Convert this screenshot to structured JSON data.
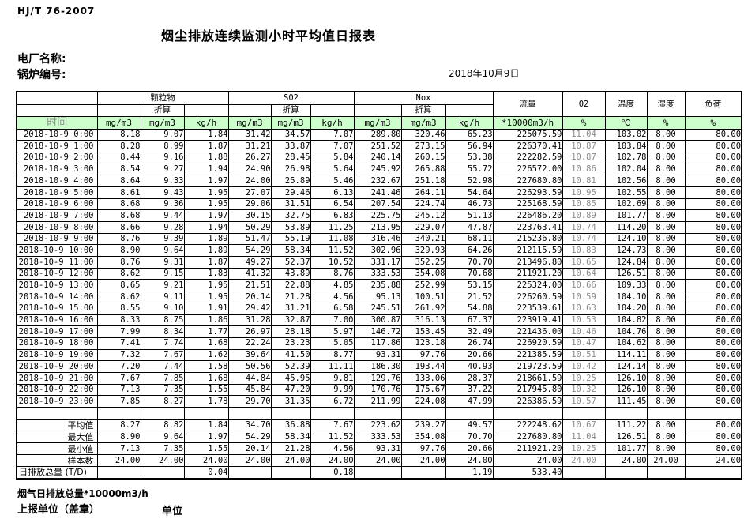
{
  "doc": {
    "standard": "HJ/T  76-2007",
    "title": "烟尘排放连续监测小时平均值日报表",
    "plant_label": "电厂名称:",
    "boiler_label": "锅炉编号:",
    "date": "2018年10月9日"
  },
  "table": {
    "time_header": "时间",
    "subheader": "折算",
    "groups": {
      "pm": "颗粒物",
      "so2": "S02",
      "nox": "Nox",
      "flow": "流量",
      "o2": "02",
      "temp": "温度",
      "humidity": "湿度",
      "load": "负荷"
    },
    "units": {
      "mgm3": "mg/m3",
      "kgh": "kg/h",
      "flow": "*10000m3/h",
      "percent": "%",
      "celsius": "℃"
    },
    "rows": [
      [
        "2018-10-9 0:00",
        "8.18",
        "9.07",
        "1.84",
        "31.42",
        "34.57",
        "7.07",
        "289.80",
        "320.46",
        "65.23",
        "225075.59",
        "11.04",
        "103.02",
        "8.00",
        "80.00"
      ],
      [
        "2018-10-9 1:00",
        "8.28",
        "8.99",
        "1.87",
        "31.21",
        "33.87",
        "7.07",
        "251.52",
        "273.15",
        "56.94",
        "226370.41",
        "10.87",
        "103.84",
        "8.00",
        "80.00"
      ],
      [
        "2018-10-9 2:00",
        "8.44",
        "9.16",
        "1.88",
        "26.27",
        "28.45",
        "5.84",
        "240.14",
        "260.15",
        "53.38",
        "222282.59",
        "10.87",
        "102.78",
        "8.00",
        "80.00"
      ],
      [
        "2018-10-9 3:00",
        "8.54",
        "9.27",
        "1.94",
        "24.90",
        "26.98",
        "5.64",
        "245.92",
        "265.88",
        "55.72",
        "226572.00",
        "10.86",
        "102.04",
        "8.00",
        "80.00"
      ],
      [
        "2018-10-9 4:00",
        "8.64",
        "9.33",
        "1.97",
        "24.00",
        "25.89",
        "5.46",
        "232.67",
        "251.18",
        "52.98",
        "227680.80",
        "10.81",
        "102.56",
        "8.00",
        "80.00"
      ],
      [
        "2018-10-9 5:00",
        "8.61",
        "9.43",
        "1.95",
        "27.07",
        "29.46",
        "6.13",
        "241.46",
        "264.11",
        "54.64",
        "226293.59",
        "10.95",
        "102.55",
        "8.00",
        "80.00"
      ],
      [
        "2018-10-9 6:00",
        "8.68",
        "9.36",
        "1.95",
        "29.06",
        "31.51",
        "6.54",
        "207.54",
        "224.74",
        "46.73",
        "225168.59",
        "10.85",
        "102.69",
        "8.00",
        "80.00"
      ],
      [
        "2018-10-9 7:00",
        "8.68",
        "9.44",
        "1.97",
        "30.15",
        "32.75",
        "6.83",
        "225.75",
        "245.12",
        "51.13",
        "226486.20",
        "10.89",
        "101.77",
        "8.00",
        "80.00"
      ],
      [
        "2018-10-9 8:00",
        "8.66",
        "9.28",
        "1.94",
        "50.29",
        "53.89",
        "11.25",
        "213.95",
        "229.07",
        "47.87",
        "223763.41",
        "10.74",
        "114.20",
        "8.00",
        "80.00"
      ],
      [
        "2018-10-9 9:00",
        "8.76",
        "9.39",
        "1.89",
        "51.47",
        "55.19",
        "11.08",
        "316.46",
        "340.21",
        "68.11",
        "215236.80",
        "10.74",
        "124.10",
        "8.00",
        "80.00"
      ],
      [
        "2018-10-9 10:00",
        "8.90",
        "9.64",
        "1.89",
        "54.29",
        "58.34",
        "11.52",
        "302.96",
        "329.93",
        "64.26",
        "212115.59",
        "10.83",
        "124.73",
        "8.00",
        "80.00"
      ],
      [
        "2018-10-9 11:00",
        "8.76",
        "9.31",
        "1.87",
        "49.27",
        "52.37",
        "10.52",
        "331.17",
        "352.25",
        "70.70",
        "213496.80",
        "10.65",
        "124.84",
        "8.00",
        "80.00"
      ],
      [
        "2018-10-9 12:00",
        "8.62",
        "9.15",
        "1.83",
        "41.32",
        "43.89",
        "8.76",
        "333.53",
        "354.08",
        "70.68",
        "211921.20",
        "10.64",
        "126.51",
        "8.00",
        "80.00"
      ],
      [
        "2018-10-9 13:00",
        "8.65",
        "9.21",
        "1.95",
        "21.51",
        "22.88",
        "4.85",
        "235.88",
        "252.99",
        "53.15",
        "225324.00",
        "10.66",
        "109.33",
        "8.00",
        "80.00"
      ],
      [
        "2018-10-9 14:00",
        "8.62",
        "9.11",
        "1.95",
        "20.14",
        "21.28",
        "4.56",
        "95.13",
        "100.51",
        "21.52",
        "226260.59",
        "10.59",
        "104.10",
        "8.00",
        "80.00"
      ],
      [
        "2018-10-9 15:00",
        "8.55",
        "9.10",
        "1.91",
        "29.42",
        "31.21",
        "6.58",
        "245.51",
        "261.92",
        "54.88",
        "223539.61",
        "10.63",
        "104.20",
        "8.00",
        "80.00"
      ],
      [
        "2018-10-9 16:00",
        "8.33",
        "8.75",
        "1.86",
        "31.28",
        "32.87",
        "7.00",
        "300.87",
        "316.13",
        "67.37",
        "223919.41",
        "10.53",
        "104.82",
        "8.00",
        "80.00"
      ],
      [
        "2018-10-9 17:00",
        "7.99",
        "8.34",
        "1.77",
        "26.97",
        "28.18",
        "5.97",
        "146.72",
        "153.45",
        "32.49",
        "221436.00",
        "10.46",
        "104.76",
        "8.00",
        "80.00"
      ],
      [
        "2018-10-9 18:00",
        "7.41",
        "7.74",
        "1.68",
        "22.24",
        "23.23",
        "5.05",
        "117.86",
        "123.18",
        "26.74",
        "226920.59",
        "10.47",
        "104.62",
        "8.00",
        "80.00"
      ],
      [
        "2018-10-9 19:00",
        "7.32",
        "7.67",
        "1.62",
        "39.64",
        "41.50",
        "8.77",
        "93.31",
        "97.76",
        "20.66",
        "221385.59",
        "10.51",
        "114.11",
        "8.00",
        "80.00"
      ],
      [
        "2018-10-9 20:00",
        "7.20",
        "7.44",
        "1.58",
        "50.56",
        "52.39",
        "11.11",
        "186.30",
        "193.44",
        "40.93",
        "219723.59",
        "10.42",
        "124.14",
        "8.00",
        "80.00"
      ],
      [
        "2018-10-9 21:00",
        "7.67",
        "7.85",
        "1.68",
        "44.84",
        "45.95",
        "9.81",
        "129.76",
        "133.06",
        "28.37",
        "218661.59",
        "10.25",
        "126.10",
        "8.00",
        "80.00"
      ],
      [
        "2018-10-9 22:00",
        "7.13",
        "7.35",
        "1.55",
        "45.84",
        "47.20",
        "9.99",
        "170.76",
        "175.67",
        "37.22",
        "217945.80",
        "10.32",
        "126.10",
        "8.00",
        "80.00"
      ],
      [
        "2018-10-9 23:00",
        "7.85",
        "8.27",
        "1.78",
        "29.70",
        "31.35",
        "6.72",
        "211.99",
        "224.08",
        "47.99",
        "226386.59",
        "10.57",
        "111.45",
        "8.00",
        "80.00"
      ]
    ],
    "spacer_rows": [
      [
        "",
        "",
        "",
        "",
        "",
        "",
        "",
        "",
        "",
        "",
        "",
        "",
        "",
        "",
        ""
      ]
    ],
    "summary_rows": [
      [
        "平均值",
        "8.27",
        "8.82",
        "1.84",
        "34.70",
        "36.88",
        "7.67",
        "223.62",
        "239.27",
        "49.57",
        "222248.62",
        "10.67",
        "111.22",
        "8.00",
        "80.00"
      ],
      [
        "最大值",
        "8.90",
        "9.64",
        "1.97",
        "54.29",
        "58.34",
        "11.52",
        "333.53",
        "354.08",
        "70.70",
        "227680.80",
        "11.04",
        "126.51",
        "8.00",
        "80.00"
      ],
      [
        "最小值",
        "7.13",
        "7.35",
        "1.55",
        "20.14",
        "21.28",
        "4.56",
        "93.31",
        "97.76",
        "20.66",
        "211921.20",
        "10.25",
        "101.77",
        "8.00",
        "80.00"
      ],
      [
        "样本数",
        "24.00",
        "24.00",
        "24.00",
        "24.00",
        "24.00",
        "24.00",
        "24.00",
        "24.00",
        "24.00",
        "24.00",
        "24.00",
        "24.00",
        "24.00",
        "24.00"
      ],
      [
        "日排放总量 (T/D)",
        "",
        "",
        "0.04",
        "",
        "",
        "0.18",
        "",
        "",
        "1.19",
        "533.40",
        "",
        "",
        "",
        ""
      ]
    ]
  },
  "footer": {
    "flue_total_label": "烟气日排放总量*10000m3/h",
    "report_unit_label": "上报单位（盖章）",
    "unit_label": "单位"
  }
}
